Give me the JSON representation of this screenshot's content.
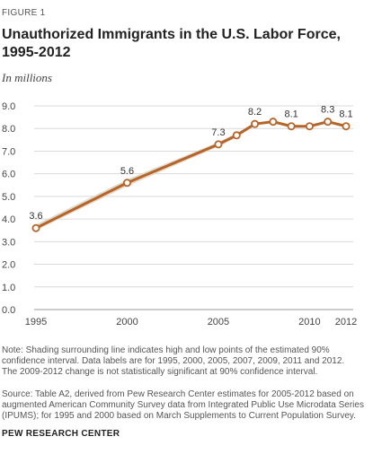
{
  "header": {
    "figure_label": "FIGURE 1",
    "title_line1": "Unauthorized  Immigrants  in the U.S. Labor Force,",
    "title_line2": "1995-2012",
    "subtitle": "In millions"
  },
  "footer": {
    "note_line1": "Note: Shading surrounding line indicates high and low points of the estimated 90%",
    "note_line2": "confidence interval. Data labels are for 1995, 2000, 2005, 2007, 2009, 2011 and 2012.",
    "note_line3": "The 2009-2012  change is not statistically significant at 90% confidence interval.",
    "source_line1": "Source: Table A2, derived from Pew Research Center estimates for 2005-2012 based on",
    "source_line2": "augmented American Community Survey data from Integrated Public Use Microdata Series",
    "source_line3": "(IPUMS); for 1995 and 2000 based on March Supplements to Current Population Survey.",
    "org": "PEW RESEARCH CENTER"
  },
  "colors": {
    "line": "#b5652a",
    "band": "#e3d9c8",
    "marker_fill": "#ffffff",
    "grid": "#d9d9d9",
    "text": "#222222"
  },
  "chart_data": {
    "type": "line",
    "x": [
      1995,
      2000,
      2005,
      2006,
      2007,
      2008,
      2009,
      2010,
      2011,
      2012
    ],
    "series": [
      {
        "values": [
          3.6,
          5.6,
          7.3,
          7.7,
          8.2,
          8.3,
          8.1,
          8.1,
          8.3,
          8.1
        ],
        "low": [
          3.5,
          5.45,
          7.2,
          7.6,
          8.15,
          8.25,
          8.05,
          8.05,
          8.25,
          8.05
        ],
        "high": [
          3.75,
          5.75,
          7.4,
          7.8,
          8.25,
          8.35,
          8.15,
          8.15,
          8.35,
          8.15
        ]
      }
    ],
    "data_labels": [
      {
        "x": 1995,
        "text": "3.6"
      },
      {
        "x": 2000,
        "text": "5.6"
      },
      {
        "x": 2005,
        "text": "7.3"
      },
      {
        "x": 2007,
        "text": "8.2"
      },
      {
        "x": 2009,
        "text": "8.1"
      },
      {
        "x": 2011,
        "text": "8.3"
      },
      {
        "x": 2012,
        "text": "8.1"
      }
    ],
    "xticks": [
      1995,
      2000,
      2005,
      2010,
      2012
    ],
    "xtick_labels": [
      "1995",
      "2000",
      "2005",
      "2010",
      "2012"
    ],
    "yticks": [
      0,
      1,
      2,
      3,
      4,
      5,
      6,
      7,
      8,
      9
    ],
    "ytick_labels": [
      "0.0",
      "1.0",
      "2.0",
      "3.0",
      "4.0",
      "5.0",
      "6.0",
      "7.0",
      "8.0",
      "9.0"
    ],
    "xlim": [
      1995,
      2012
    ],
    "ylim": [
      0,
      9
    ],
    "grid": "horizontal",
    "legend": "none"
  }
}
